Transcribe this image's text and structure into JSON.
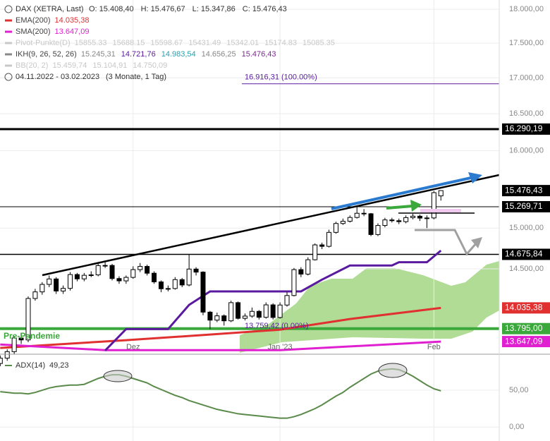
{
  "chart_data": [
    {
      "type": "candlestick",
      "title": "DAX (XETRA, Last)",
      "ohlc_labels": [
        "O: 15.408,40",
        "H: 15.476,67",
        "L: 15.347,86",
        "C: 15.476,43"
      ],
      "legend": [
        {
          "name": "EMA(200)",
          "color": "#e03030",
          "values": [
            {
              "text": "14.035,38",
              "color": "#e03030"
            }
          ]
        },
        {
          "name": "SMA(200)",
          "color": "#e020d0",
          "values": [
            {
              "text": "13.647,09",
              "color": "#e020d0"
            }
          ]
        },
        {
          "name": "Pivot-Punkte(D)",
          "color": "#c8c8c8",
          "values": [
            {
              "text": "15855.33",
              "color": "#c8c8c8"
            },
            {
              "text": "15688.15",
              "color": "#c8c8c8"
            },
            {
              "text": "15598.67",
              "color": "#c8c8c8"
            },
            {
              "text": "15431.49",
              "color": "#c8c8c8"
            },
            {
              "text": "15342.01",
              "color": "#c8c8c8"
            },
            {
              "text": "15174.83",
              "color": "#c8c8c8"
            },
            {
              "text": "15085.35",
              "color": "#c8c8c8"
            }
          ]
        },
        {
          "name": "IKH(9, 26, 52, 26)",
          "color": "#888888",
          "values": [
            {
              "text": "15.245,31",
              "color": "#888888"
            },
            {
              "text": "14.721,76",
              "color": "#5a1aa0"
            },
            {
              "text": "14.983,54",
              "color": "#2aa0b0"
            },
            {
              "text": "14.656,25",
              "color": "#888888"
            },
            {
              "text": "15.476,43",
              "color": "#7a2a90"
            }
          ]
        },
        {
          "name": "BB(20, 2)",
          "color": "#c8c8c8",
          "values": [
            {
              "text": "15.459,74",
              "color": "#c8c8c8"
            },
            {
              "text": "15.104,91",
              "color": "#c8c8c8"
            },
            {
              "text": "14.750,09",
              "color": "#c8c8c8"
            }
          ]
        }
      ],
      "period": "04.11.2022 - 03.02.2023",
      "period_note": "(3 Monate, 1 Tag)",
      "log_scale": true,
      "ylim": [
        13520,
        18140
      ],
      "yticks": [
        {
          "value": 14500,
          "label": "14.500,00"
        },
        {
          "value": 15000,
          "label": "15.000,00"
        },
        {
          "value": 16000,
          "label": "16.000,00"
        },
        {
          "value": 16500,
          "label": "16.500,00"
        },
        {
          "value": 17000,
          "label": "17.000,00"
        },
        {
          "value": 17500,
          "label": "17.500,00"
        },
        {
          "value": 18000,
          "label": "18.000,00"
        }
      ],
      "xticks": [
        {
          "value": 19,
          "label": "Dez"
        },
        {
          "value": 40,
          "label": "Jan '23"
        },
        {
          "value": 62,
          "label": "Feb"
        }
      ],
      "grid": true,
      "open": [
        13400,
        13460,
        13533,
        13688,
        13666,
        14146,
        14224,
        14313,
        14378,
        14234,
        14266,
        14431,
        14379,
        14422,
        14427,
        14539,
        14541,
        14383,
        14355,
        14397,
        14490,
        14529,
        14447,
        14343,
        14261,
        14264,
        14370,
        14306,
        14497,
        14460,
        13986,
        13893,
        13943,
        13885,
        14097,
        13914,
        13940,
        13995,
        13926,
        14071,
        13924,
        14069,
        14181,
        14490,
        14436,
        14610,
        14792,
        14774,
        14947,
        15058,
        15086,
        15134,
        15187,
        15181,
        14920,
        15033,
        15103,
        15093,
        15081,
        15132,
        15150,
        15126,
        15128,
        15408.4
      ],
      "high": [
        13490,
        13560,
        13710,
        13720,
        14170,
        14260,
        14340,
        14420,
        14400,
        14300,
        14460,
        14450,
        14450,
        14470,
        14560,
        14580,
        14560,
        14410,
        14420,
        14530,
        14570,
        14550,
        14470,
        14360,
        14300,
        14400,
        14390,
        14680,
        14520,
        14470,
        14000,
        13980,
        13960,
        14120,
        14110,
        13970,
        14040,
        14010,
        14100,
        14090,
        14100,
        14220,
        14510,
        14520,
        14640,
        14810,
        14820,
        14980,
        15080,
        15120,
        15160,
        15280,
        15240,
        15190,
        15060,
        15130,
        15130,
        15120,
        15160,
        15180,
        15170,
        15160,
        15470,
        15476.67
      ],
      "low": [
        13370,
        13430,
        13500,
        13620,
        13640,
        14120,
        14190,
        14280,
        14200,
        14200,
        14240,
        14350,
        14350,
        14400,
        14410,
        14510,
        14360,
        14320,
        14320,
        14380,
        14460,
        14420,
        14320,
        14220,
        14230,
        14250,
        14280,
        14290,
        14420,
        13950,
        13790,
        13870,
        13830,
        13870,
        13900,
        13890,
        13920,
        13900,
        13910,
        13900,
        13910,
        14050,
        14170,
        14400,
        14420,
        14600,
        14740,
        14760,
        14930,
        15040,
        15070,
        15120,
        15150,
        14900,
        14900,
        15010,
        15070,
        15050,
        15060,
        15110,
        15090,
        15000,
        15110,
        15347.86
      ],
      "close": [
        13460,
        13533,
        13688,
        13666,
        14146,
        14224,
        14313,
        14378,
        14234,
        14266,
        14431,
        14379,
        14422,
        14427,
        14539,
        14541,
        14383,
        14355,
        14397,
        14490,
        14529,
        14447,
        14343,
        14261,
        14264,
        14370,
        14306,
        14497,
        14460,
        13986,
        13893,
        13943,
        13885,
        14097,
        13914,
        13940,
        13995,
        13926,
        14071,
        13924,
        14069,
        14181,
        14490,
        14436,
        14610,
        14792,
        14774,
        14947,
        15058,
        15086,
        15134,
        15187,
        15181,
        14920,
        15033,
        15103,
        15093,
        15081,
        15132,
        15150,
        15126,
        15128,
        15450,
        15476.43
      ],
      "overlays": [
        {
          "name": "EMA(200)",
          "color": "#e03030",
          "x": [
            0,
            18,
            30,
            40,
            50,
            63
          ],
          "values": [
            13575,
            13663,
            13727,
            13783,
            13906,
            14035.38
          ]
        },
        {
          "name": "SMA(200)",
          "color": "#e020d0",
          "x": [
            0,
            15,
            40,
            63
          ],
          "values": [
            13614,
            13550,
            13550,
            13647.09
          ]
        },
        {
          "name": "IKH",
          "color": "#5a1aa0",
          "x": [
            15,
            18,
            24,
            27,
            30,
            43,
            46,
            50,
            56,
            57,
            61,
            63
          ],
          "values": [
            13545,
            13790,
            13790,
            14070,
            14230,
            14230,
            14370,
            14540,
            14540,
            14580,
            14580,
            14721.76
          ]
        }
      ],
      "levels": [
        {
          "value": 16290.19,
          "label": "16.290,19",
          "color": "#000000",
          "width": 3
        },
        {
          "value": 15269.71,
          "label": "15.269,71",
          "color": "#000000",
          "width": 1
        },
        {
          "value": 14675.84,
          "label": "14.675,84",
          "color": "#000000",
          "width": 1.5
        },
        {
          "value": 13795,
          "label": "13.795,00",
          "color": "#3aa83a",
          "width": 4
        }
      ],
      "price_labels": [
        {
          "value": 15476.43,
          "label": "15.476,43",
          "color": "#000000"
        },
        {
          "value": 14035.38,
          "label": "14.035,38",
          "color": "#e03030"
        },
        {
          "value": 13647.09,
          "label": "13.647,09",
          "color": "#e020d0"
        }
      ],
      "fib_high": {
        "value": 16916.31,
        "label": "16.916,31 (100.00%)",
        "color": "#5a1aa0"
      },
      "fib_low": {
        "value": 13759.42,
        "label": "13.759,42 (0.00%)",
        "color": "#5a1aa0"
      },
      "annotation": "Pre-Pandemie"
    },
    {
      "type": "line",
      "title": "ADX(14)",
      "current_label": "49,23",
      "color": "#5a8a4a",
      "ylim": [
        -19,
        98
      ],
      "yticks": [
        {
          "value": 0,
          "label": "0,00"
        },
        {
          "value": 50,
          "label": "50,00"
        }
      ],
      "values": [
        48,
        47,
        46,
        46,
        45,
        47,
        50,
        53,
        55,
        56,
        57,
        57,
        58,
        62,
        66,
        69,
        71,
        71,
        69,
        66,
        63,
        60,
        55,
        51,
        47,
        43,
        40,
        36,
        33,
        30,
        27,
        24,
        22,
        20,
        18,
        17,
        16,
        15,
        14,
        13,
        12,
        12,
        14,
        17,
        21,
        25,
        30,
        36,
        42,
        47,
        54,
        60,
        66,
        72,
        76,
        78,
        79,
        78,
        74,
        69,
        63,
        57,
        52,
        49.23
      ]
    }
  ]
}
